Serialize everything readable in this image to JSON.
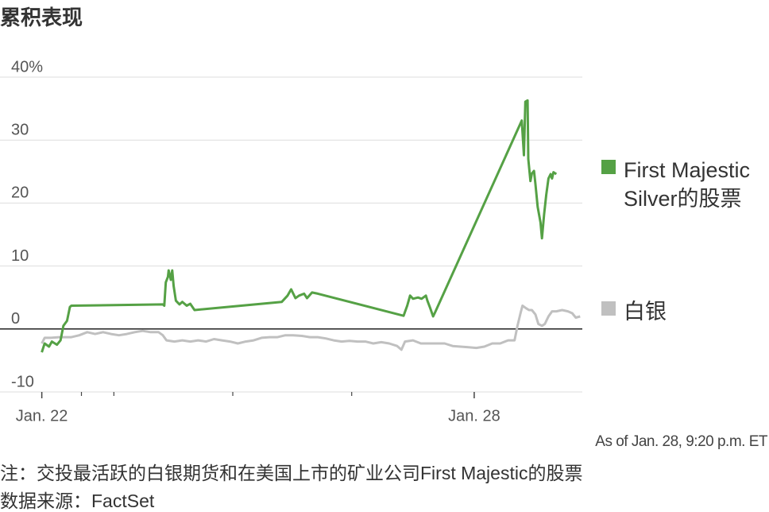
{
  "chart_data": {
    "type": "line",
    "title": "累积表现",
    "as_of": "As of Jan. 28, 9:20 p.m. ET",
    "note": "注：交投最活跃的白银期货和在美国上市的矿业公司First Majestic的股票",
    "source": "数据来源：FactSet",
    "xlim": [
      21.42,
      29.5
    ],
    "xticks": [
      {
        "value": 22,
        "label": "Jan. 22"
      },
      {
        "value": 28,
        "label": "Jan. 28"
      }
    ],
    "xminorticks": [
      22.55,
      23,
      24.65,
      26.3
    ],
    "ylim": [
      -10,
      40
    ],
    "yticks": [
      -10,
      0,
      10,
      20,
      30,
      {
        "value": 40,
        "label": "40%"
      }
    ],
    "grid": true,
    "series": [
      {
        "name": "First Majestic Silver的股票",
        "color": "#55a145",
        "x": [
          22.0,
          22.04,
          22.1,
          22.14,
          22.21,
          22.26,
          22.3,
          22.35,
          22.39,
          22.41,
          23.68,
          23.7,
          23.72,
          23.75,
          23.76,
          23.79,
          23.81,
          23.83,
          23.86,
          23.91,
          23.95,
          24.01,
          24.06,
          24.12,
          25.33,
          25.41,
          25.46,
          25.52,
          25.57,
          25.64,
          25.68,
          25.75,
          25.83,
          27.02,
          27.07,
          27.11,
          27.15,
          27.22,
          27.27,
          27.33,
          27.35,
          27.39,
          27.43,
          27.46,
          28.66,
          28.69,
          28.71,
          28.74,
          28.75,
          28.78,
          28.8,
          28.83,
          28.85,
          28.88,
          28.92,
          28.94,
          28.97,
          29.0,
          29.03,
          29.06,
          29.08,
          29.1,
          29.14
        ],
        "values": [
          -3.7,
          -2.3,
          -2.8,
          -2.0,
          -2.5,
          -1.8,
          0.5,
          1.3,
          3.5,
          3.7,
          3.9,
          3.7,
          7.4,
          8.3,
          9.3,
          7.8,
          9.3,
          6.8,
          4.5,
          3.9,
          4.3,
          3.7,
          4.0,
          3.0,
          4.3,
          5.3,
          6.3,
          4.9,
          5.3,
          5.6,
          4.9,
          5.8,
          5.6,
          2.1,
          3.7,
          5.3,
          4.8,
          5.0,
          4.8,
          5.3,
          4.5,
          3.3,
          2.0,
          2.7,
          33.1,
          27.6,
          36.1,
          36.3,
          27.0,
          23.5,
          24.7,
          25.1,
          23.0,
          19.4,
          16.9,
          14.4,
          18.2,
          21.3,
          23.9,
          24.6,
          23.9,
          24.9,
          24.6
        ]
      },
      {
        "name": "白银",
        "color": "#c0c0c0",
        "x": [
          22.0,
          22.04,
          22.13,
          22.24,
          22.41,
          22.52,
          22.63,
          22.74,
          22.85,
          22.96,
          23.07,
          23.18,
          23.29,
          23.4,
          23.51,
          23.62,
          23.68,
          23.73,
          23.84,
          23.95,
          24.06,
          24.17,
          24.28,
          24.39,
          24.5,
          24.61,
          24.72,
          24.83,
          24.94,
          25.05,
          25.16,
          25.27,
          25.38,
          25.49,
          25.61,
          25.72,
          25.83,
          25.94,
          26.05,
          26.16,
          26.27,
          26.38,
          26.49,
          26.6,
          26.71,
          26.82,
          26.93,
          26.99,
          27.04,
          27.15,
          27.26,
          27.37,
          27.48,
          27.59,
          27.7,
          27.81,
          27.92,
          28.03,
          28.14,
          28.25,
          28.36,
          28.47,
          28.56,
          28.6,
          28.64,
          28.67,
          28.72,
          28.76,
          28.8,
          28.85,
          28.89,
          28.94,
          28.98,
          29.03,
          29.08,
          29.14,
          29.22,
          29.3,
          29.36,
          29.41,
          29.47
        ],
        "values": [
          -2.3,
          -1.4,
          -1.4,
          -1.3,
          -1.3,
          -1.0,
          -0.5,
          -0.8,
          -0.5,
          -0.8,
          -1.0,
          -0.8,
          -0.5,
          -0.3,
          -0.5,
          -0.5,
          -1.0,
          -1.8,
          -2.0,
          -1.8,
          -2.0,
          -1.8,
          -2.0,
          -1.6,
          -1.8,
          -2.0,
          -2.3,
          -2.0,
          -1.8,
          -1.4,
          -1.3,
          -1.3,
          -1.0,
          -1.0,
          -1.1,
          -1.3,
          -1.3,
          -1.5,
          -1.8,
          -2.0,
          -1.9,
          -2.0,
          -2.0,
          -2.3,
          -2.1,
          -2.3,
          -2.7,
          -3.3,
          -2.0,
          -1.8,
          -2.3,
          -2.3,
          -2.3,
          -2.3,
          -2.7,
          -2.8,
          -2.9,
          -3.0,
          -2.8,
          -2.3,
          -2.3,
          -1.8,
          -1.8,
          0.5,
          2.4,
          3.7,
          3.3,
          3.0,
          3.0,
          2.3,
          0.8,
          0.5,
          0.8,
          2.0,
          2.8,
          2.8,
          3.0,
          2.8,
          2.5,
          1.8,
          2.0
        ]
      }
    ]
  }
}
